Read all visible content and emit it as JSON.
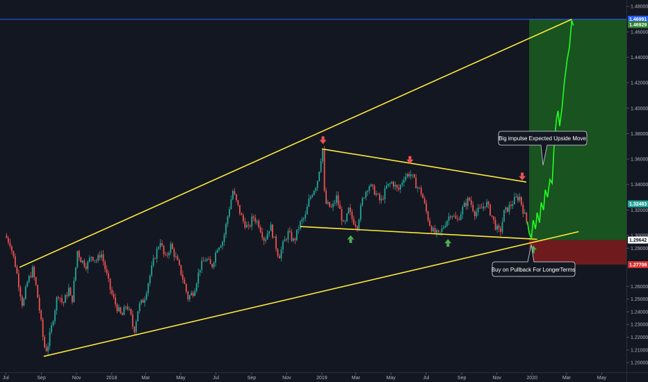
{
  "colors": {
    "background": "#131722",
    "up_candle": "#26a69a",
    "down_candle": "#ef5350",
    "trendline": "#ffeb3b",
    "projection": "#22ff22",
    "profit_zone": "#1b5e20",
    "loss_zone": "#801c1c",
    "current_price_line": "#2962ff",
    "arrow_down": "#ef5350",
    "arrow_up": "#4caf50"
  },
  "chart_data": {
    "type": "candlestick",
    "x_axis": {
      "ticks": [
        "Jul",
        "Sep",
        "Nov",
        "2018",
        "Mar",
        "May",
        "Jul",
        "Sep",
        "Nov",
        "2019",
        "Mar",
        "May",
        "Jul",
        "Sep",
        "Nov",
        "2020",
        "Mar",
        "May"
      ],
      "range": [
        "2017-07",
        "2020-06"
      ]
    },
    "y_axis": {
      "ticks": [
        "1.48000",
        "1.46000",
        "1.44000",
        "1.42000",
        "1.40000",
        "1.38000",
        "1.36000",
        "1.34000",
        "1.32000",
        "1.30000",
        "1.29000",
        "1.26000",
        "1.25000",
        "1.24000",
        "1.23000",
        "1.22000",
        "1.21000",
        "1.20000"
      ],
      "ylim": [
        1.195,
        1.485
      ],
      "scale": "linear"
    },
    "price_labels": [
      {
        "label": "1.46991",
        "value": 1.4699,
        "color": "#2962ff",
        "text_color": "#ffffff"
      },
      {
        "label": "1.46929",
        "value": 1.4657,
        "color": "#2e7d32",
        "text_color": "#ffffff"
      },
      {
        "label": "1.32483",
        "value": 1.3248,
        "color": "#26a69a",
        "text_color": "#ffffff"
      },
      {
        "label": "1.29642",
        "value": 1.2964,
        "color": "#ffffff",
        "text_color": "#131722"
      },
      {
        "label": "1.27708",
        "value": 1.2771,
        "color": "#d32f2f",
        "text_color": "#ffffff"
      }
    ],
    "price_path": [
      [
        "2017-07-01",
        1.3
      ],
      [
        "2017-07-10",
        1.294
      ],
      [
        "2017-07-20",
        1.275
      ],
      [
        "2017-08-01",
        1.244
      ],
      [
        "2017-08-08",
        1.262
      ],
      [
        "2017-08-18",
        1.273
      ],
      [
        "2017-08-25",
        1.258
      ],
      [
        "2017-09-01",
        1.235
      ],
      [
        "2017-09-07",
        1.213
      ],
      [
        "2017-09-12",
        1.21
      ],
      [
        "2017-09-20",
        1.228
      ],
      [
        "2017-10-01",
        1.255
      ],
      [
        "2017-10-10",
        1.246
      ],
      [
        "2017-10-20",
        1.258
      ],
      [
        "2017-10-25",
        1.246
      ],
      [
        "2017-11-01",
        1.275
      ],
      [
        "2017-11-03",
        1.289
      ],
      [
        "2017-11-10",
        1.281
      ],
      [
        "2017-11-20",
        1.276
      ],
      [
        "2017-11-28",
        1.284
      ],
      [
        "2017-12-08",
        1.28
      ],
      [
        "2017-12-15",
        1.287
      ],
      [
        "2017-12-22",
        1.274
      ],
      [
        "2018-01-01",
        1.256
      ],
      [
        "2018-01-10",
        1.245
      ],
      [
        "2018-01-20",
        1.236
      ],
      [
        "2018-01-28",
        1.246
      ],
      [
        "2018-02-05",
        1.236
      ],
      [
        "2018-02-10",
        1.224
      ],
      [
        "2018-02-18",
        1.244
      ],
      [
        "2018-02-28",
        1.25
      ],
      [
        "2018-03-08",
        1.265
      ],
      [
        "2018-03-18",
        1.283
      ],
      [
        "2018-03-28",
        1.296
      ],
      [
        "2018-04-05",
        1.281
      ],
      [
        "2018-04-15",
        1.292
      ],
      [
        "2018-04-25",
        1.281
      ],
      [
        "2018-05-05",
        1.268
      ],
      [
        "2018-05-15",
        1.251
      ],
      [
        "2018-05-25",
        1.256
      ],
      [
        "2018-06-05",
        1.275
      ],
      [
        "2018-06-15",
        1.282
      ],
      [
        "2018-06-25",
        1.275
      ],
      [
        "2018-07-05",
        1.291
      ],
      [
        "2018-07-15",
        1.296
      ],
      [
        "2018-07-25",
        1.32
      ],
      [
        "2018-08-01",
        1.335
      ],
      [
        "2018-08-08",
        1.325
      ],
      [
        "2018-08-18",
        1.312
      ],
      [
        "2018-08-28",
        1.305
      ],
      [
        "2018-09-05",
        1.315
      ],
      [
        "2018-09-15",
        1.309
      ],
      [
        "2018-09-25",
        1.296
      ],
      [
        "2018-10-05",
        1.308
      ],
      [
        "2018-10-15",
        1.291
      ],
      [
        "2018-10-20",
        1.283
      ],
      [
        "2018-10-28",
        1.294
      ],
      [
        "2018-11-05",
        1.302
      ],
      [
        "2018-11-15",
        1.295
      ],
      [
        "2018-11-25",
        1.309
      ],
      [
        "2018-12-05",
        1.315
      ],
      [
        "2018-12-10",
        1.326
      ],
      [
        "2018-12-18",
        1.335
      ],
      [
        "2018-12-25",
        1.341
      ],
      [
        "2018-12-29",
        1.352
      ],
      [
        "2019-01-02",
        1.364
      ],
      [
        "2019-01-04",
        1.367
      ],
      [
        "2019-01-06",
        1.336
      ],
      [
        "2019-01-10",
        1.325
      ],
      [
        "2019-01-20",
        1.321
      ],
      [
        "2019-01-28",
        1.33
      ],
      [
        "2019-02-05",
        1.316
      ],
      [
        "2019-02-10",
        1.306
      ],
      [
        "2019-02-18",
        1.32
      ],
      [
        "2019-02-25",
        1.312
      ],
      [
        "2019-03-05",
        1.308
      ],
      [
        "2019-03-15",
        1.33
      ],
      [
        "2019-03-25",
        1.34
      ],
      [
        "2019-04-05",
        1.334
      ],
      [
        "2019-04-15",
        1.326
      ],
      [
        "2019-04-25",
        1.338
      ],
      [
        "2019-05-05",
        1.342
      ],
      [
        "2019-05-15",
        1.335
      ],
      [
        "2019-05-25",
        1.346
      ],
      [
        "2019-06-05",
        1.349
      ],
      [
        "2019-06-15",
        1.34
      ],
      [
        "2019-06-25",
        1.333
      ],
      [
        "2019-07-01",
        1.322
      ],
      [
        "2019-07-08",
        1.31
      ],
      [
        "2019-07-15",
        1.303
      ],
      [
        "2019-07-25",
        1.3
      ],
      [
        "2019-08-05",
        1.31
      ],
      [
        "2019-08-15",
        1.318
      ],
      [
        "2019-08-25",
        1.311
      ],
      [
        "2019-09-05",
        1.322
      ],
      [
        "2019-09-15",
        1.329
      ],
      [
        "2019-09-25",
        1.318
      ],
      [
        "2019-10-05",
        1.32
      ],
      [
        "2019-10-15",
        1.326
      ],
      [
        "2019-10-25",
        1.315
      ],
      [
        "2019-11-01",
        1.306
      ],
      [
        "2019-11-08",
        1.302
      ],
      [
        "2019-11-15",
        1.318
      ],
      [
        "2019-11-25",
        1.323
      ],
      [
        "2019-12-05",
        1.329
      ],
      [
        "2019-12-12",
        1.33
      ],
      [
        "2019-12-18",
        1.32
      ],
      [
        "2019-12-24",
        1.311
      ]
    ],
    "projection_path": [
      [
        "2019-12-24",
        1.311
      ],
      [
        "2019-12-27",
        1.302
      ],
      [
        "2019-12-31",
        1.298
      ],
      [
        "2020-01-03",
        1.312
      ],
      [
        "2020-01-07",
        1.305
      ],
      [
        "2020-01-10",
        1.318
      ],
      [
        "2020-01-14",
        1.31
      ],
      [
        "2020-01-17",
        1.326
      ],
      [
        "2020-01-21",
        1.32
      ],
      [
        "2020-01-24",
        1.336
      ],
      [
        "2020-01-28",
        1.33
      ],
      [
        "2020-02-01",
        1.344
      ],
      [
        "2020-02-05",
        1.341
      ],
      [
        "2020-02-08",
        1.368
      ],
      [
        "2020-02-12",
        1.39
      ],
      [
        "2020-02-15",
        1.398
      ],
      [
        "2020-02-18",
        1.386
      ],
      [
        "2020-02-22",
        1.4
      ],
      [
        "2020-02-26",
        1.42
      ],
      [
        "2020-03-02",
        1.438
      ],
      [
        "2020-03-06",
        1.448
      ],
      [
        "2020-03-10",
        1.469
      ],
      [
        "2020-03-13",
        1.465
      ]
    ],
    "trendlines": [
      {
        "name": "upper-channel",
        "from": [
          "2017-07-25",
          1.275
        ],
        "to": [
          "2020-03-10",
          1.4699
        ]
      },
      {
        "name": "lower-channel",
        "from": [
          "2017-09-05",
          1.205
        ],
        "to": [
          "2020-03-22",
          1.303
        ]
      },
      {
        "name": "wedge-top",
        "from": [
          "2019-01-01",
          1.368
        ],
        "to": [
          "2019-12-22",
          1.342
        ]
      },
      {
        "name": "wedge-bottom",
        "from": [
          "2018-11-25",
          1.307
        ],
        "to": [
          "2020-01-10",
          1.297
        ]
      }
    ],
    "markers": [
      {
        "type": "arrow-down",
        "date": "2019-01-03",
        "value": 1.3735
      },
      {
        "type": "arrow-down",
        "date": "2019-06-03",
        "value": 1.358
      },
      {
        "type": "arrow-down",
        "date": "2019-12-15",
        "value": 1.345
      },
      {
        "type": "arrow-up",
        "date": "2019-02-20",
        "value": 1.2985
      },
      {
        "type": "arrow-up",
        "date": "2019-08-08",
        "value": 1.2955
      },
      {
        "type": "arrow-up",
        "date": "2020-01-03",
        "value": 1.2905
      }
    ],
    "zones": [
      {
        "name": "profit-zone",
        "from": "2019-12-27",
        "to": "2020-06-30",
        "top": 1.4699,
        "bottom": 1.2964
      },
      {
        "name": "loss-zone",
        "from": "2019-12-27",
        "to": "2020-06-30",
        "top": 1.2964,
        "bottom": 1.2771
      }
    ],
    "annotations": [
      {
        "key": "big_impulse",
        "text": "Big impulse Expected Upside Move"
      },
      {
        "key": "buy_pullback",
        "text": "Buy on Pullback For LongerTerms"
      }
    ]
  }
}
